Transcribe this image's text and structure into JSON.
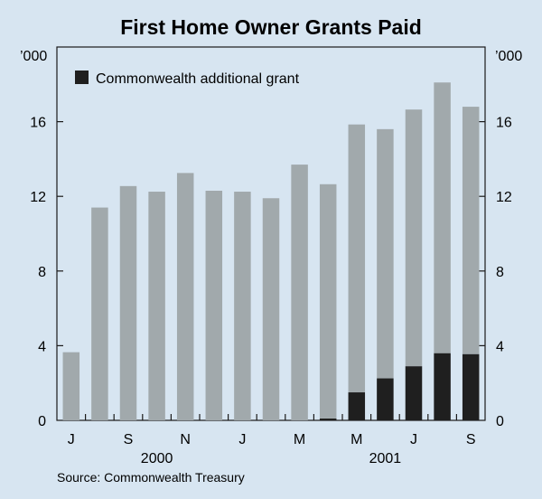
{
  "chart_data": {
    "type": "bar",
    "stacked": true,
    "title": "First Home Owner Grants Paid",
    "unit_left": "’000",
    "unit_right": "’000",
    "ylim": [
      0,
      20
    ],
    "yticks": [
      0,
      4,
      8,
      12,
      16
    ],
    "grid": false,
    "months": [
      "Jul 2000",
      "Aug 2000",
      "Sep 2000",
      "Oct 2000",
      "Nov 2000",
      "Dec 2000",
      "Jan 2001",
      "Feb 2001",
      "Mar 2001",
      "Apr 2001",
      "May 2001",
      "Jun 2001",
      "Jul 2001",
      "Aug 2001",
      "Sep 2001"
    ],
    "x_tick_labels": [
      "J",
      "",
      "S",
      "",
      "N",
      "",
      "J",
      "",
      "M",
      "",
      "M",
      "",
      "J",
      "",
      "S"
    ],
    "year_labels": [
      {
        "text": "2000",
        "index": 3
      },
      {
        "text": "2001",
        "index": 11
      }
    ],
    "series": [
      {
        "key": "additional",
        "name": "Commonwealth additional grant",
        "color": "#1f1f1f",
        "values": [
          0,
          0,
          0,
          0,
          0,
          0,
          0,
          0,
          0,
          0.1,
          1.5,
          2.25,
          2.9,
          3.6,
          3.55
        ]
      },
      {
        "key": "other",
        "color": "#a1a9ac",
        "values": [
          3.65,
          11.4,
          12.55,
          12.25,
          13.25,
          12.3,
          12.25,
          11.9,
          13.7,
          12.55,
          14.35,
          13.35,
          13.75,
          14.5,
          13.25
        ]
      }
    ],
    "legend": {
      "position": "top-left"
    },
    "source": "Source: Commonwealth Treasury"
  }
}
